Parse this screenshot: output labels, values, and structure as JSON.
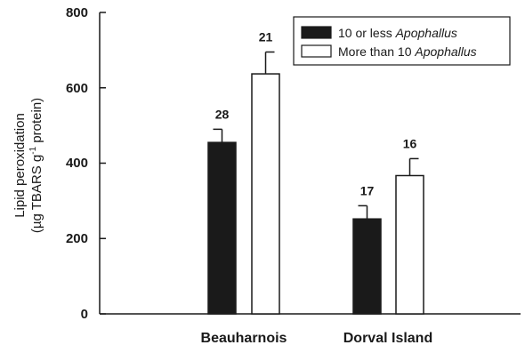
{
  "chart_data": {
    "type": "bar",
    "categories": [
      "Beauharnois",
      "Dorval Island"
    ],
    "series": [
      {
        "legend_prefix": "10 or less ",
        "legend_italic": "Apophallus",
        "values": [
          455,
          252
        ],
        "errors": [
          35,
          35
        ],
        "n_labels": [
          "28",
          "17"
        ],
        "color": "#1a1a1a"
      },
      {
        "legend_prefix": "More than 10 ",
        "legend_italic": "Apophallus",
        "values": [
          637,
          367
        ],
        "errors": [
          58,
          45
        ],
        "n_labels": [
          "21",
          "16"
        ],
        "color": "#ffffff"
      }
    ],
    "ylabel_line1": "Lipid peroxidation",
    "ylabel_line2_pre": "(µg TBARS g",
    "ylabel_line2_sup": "-1",
    "ylabel_line2_post": " protein)",
    "ylim": [
      0,
      800
    ],
    "yticks": [
      "0",
      "200",
      "400",
      "600",
      "800"
    ],
    "grid": false,
    "legend_position": "top-right"
  }
}
